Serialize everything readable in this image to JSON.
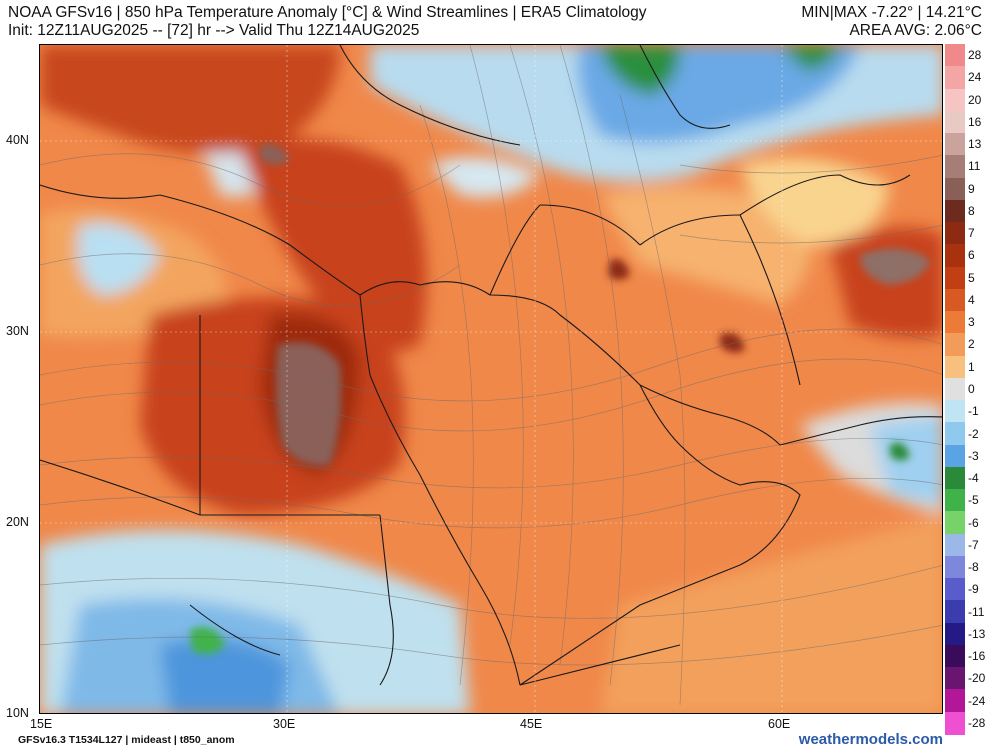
{
  "header": {
    "title": "NOAA GFSv16 | 850 hPa Temperature Anomaly [°C] & Wind Streamlines | ERA5 Climatology",
    "init": "Init: 12Z11AUG2025 -- [72] hr --> Valid Thu 12Z14AUG2025",
    "minmax": "MIN|MAX -7.22° | 14.21°C",
    "area_avg": "AREA AVG: 2.06°C"
  },
  "axes": {
    "lat_labels": [
      "40N",
      "30N",
      "20N",
      "10N"
    ],
    "lon_labels": [
      "15E",
      "30E",
      "45E",
      "60E"
    ]
  },
  "color_scale": {
    "labels": [
      "28",
      "24",
      "20",
      "16",
      "13",
      "11",
      "9",
      "8",
      "7",
      "6",
      "5",
      "4",
      "3",
      "2",
      "1",
      "0",
      "-1",
      "-2",
      "-3",
      "-4",
      "-5",
      "-6",
      "-7",
      "-8",
      "-9",
      "-11",
      "-13",
      "-16",
      "-20",
      "-24",
      "-28"
    ],
    "colors": [
      "#f08a8a",
      "#f4a5a5",
      "#f7c4c4",
      "#e9c9c4",
      "#c9a39c",
      "#a77e77",
      "#8a5f58",
      "#6d2a1e",
      "#8c2b12",
      "#a8320d",
      "#c13f13",
      "#d85a22",
      "#ec7b38",
      "#f39b58",
      "#f8c07e",
      "#e0e0e0",
      "#bfe4f4",
      "#8fc9ee",
      "#5aa3e4",
      "#2a8a3a",
      "#3fb34a",
      "#78d26a",
      "#9cb8e8",
      "#7d88dc",
      "#5a5ccc",
      "#3b3cae",
      "#231a86",
      "#3a0b5a",
      "#6a1570",
      "#b2179a",
      "#ef4fd1"
    ]
  },
  "footer": {
    "left": "GFSv16.3 T1534L127 | mideast | t850_anom",
    "right": "weathermodels.com"
  }
}
